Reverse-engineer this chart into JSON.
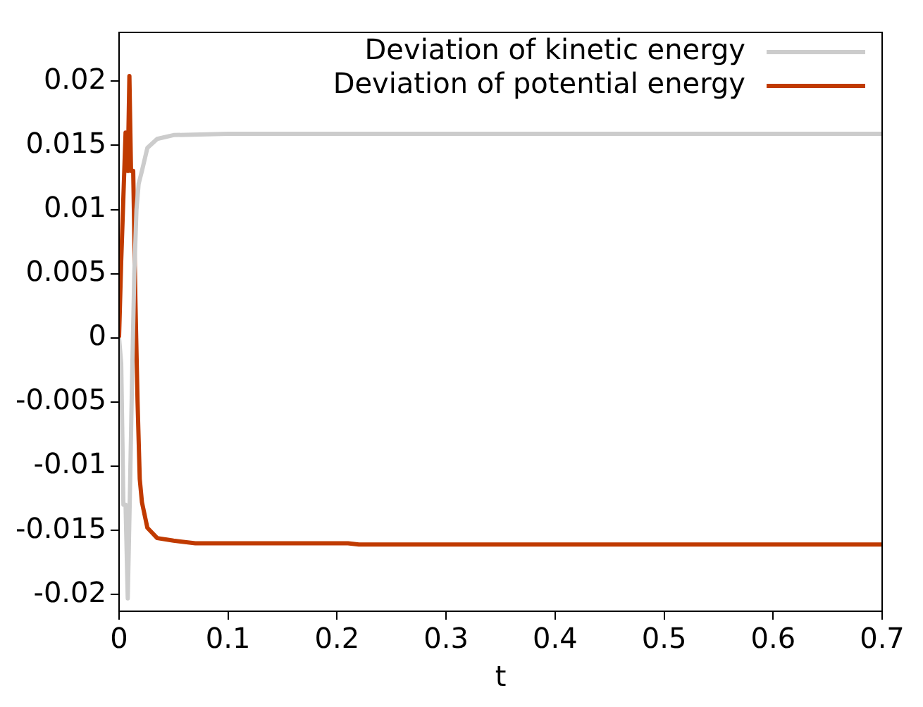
{
  "chart_data": {
    "type": "line",
    "xlabel": "t",
    "xlim": [
      0,
      0.7
    ],
    "xticks": [
      0,
      0.1,
      0.2,
      0.3,
      0.4,
      0.5,
      0.6,
      0.7
    ],
    "ylim": [
      -0.0213,
      0.0238
    ],
    "yticks": [
      -0.02,
      -0.015,
      -0.01,
      -0.005,
      0,
      0.005,
      0.01,
      0.015,
      0.02
    ],
    "grid": false,
    "legend": "top right",
    "marker": "none",
    "line_style": "solid",
    "series": [
      {
        "name": "Deviation of kinetic energy",
        "color": "#cccccc",
        "x": [
          0,
          0.002,
          0.004,
          0.006,
          0.008,
          0.01,
          0.012,
          0.014,
          0.016,
          0.018,
          0.021,
          0.026,
          0.035,
          0.05,
          0.1,
          0.7
        ],
        "values": [
          0,
          -0.002,
          -0.013,
          -0.013,
          -0.0203,
          -0.012,
          -0.003,
          0.005,
          0.01,
          0.012,
          0.013,
          0.0148,
          0.0155,
          0.0158,
          0.0159,
          0.0159
        ]
      },
      {
        "name": "Deviation of potential energy",
        "color": "#c03a00",
        "x": [
          0,
          0.002,
          0.004,
          0.006,
          0.008,
          0.0095,
          0.011,
          0.013,
          0.015,
          0.017,
          0.019,
          0.021,
          0.026,
          0.035,
          0.05,
          0.07,
          0.21,
          0.22,
          0.7
        ],
        "values": [
          0,
          0.006,
          0.011,
          0.016,
          0.013,
          0.0204,
          0.013,
          0.013,
          0.003,
          -0.005,
          -0.011,
          -0.0128,
          -0.0148,
          -0.0156,
          -0.0158,
          -0.016,
          -0.016,
          -0.0161,
          -0.0161
        ]
      }
    ]
  }
}
